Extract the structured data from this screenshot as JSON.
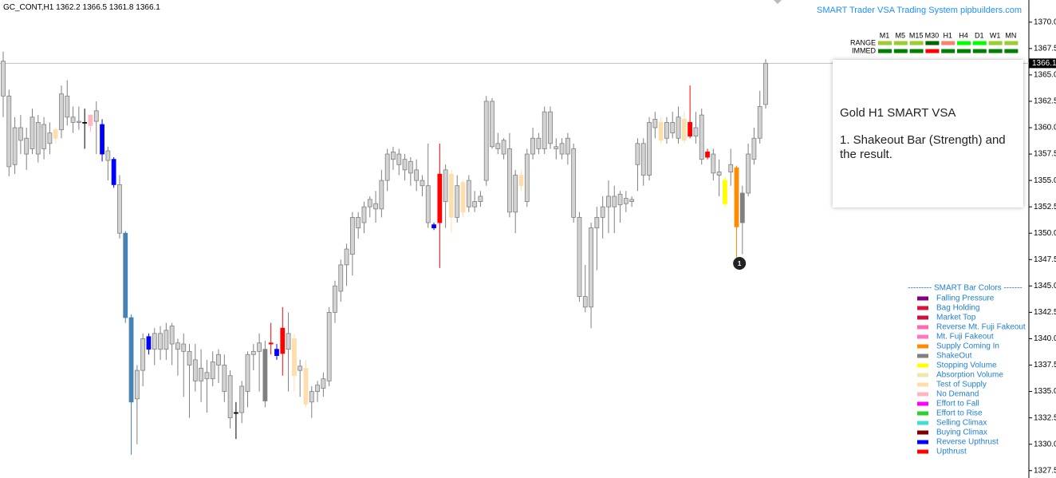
{
  "chart_data": {
    "type": "candlestick",
    "symbol": "GC_CONT,H1",
    "ohlc": [
      [
        1366.3,
        1367.2,
        1361.0,
        1363.0
      ],
      [
        1363.0,
        1363.6,
        1355.4,
        1356.3
      ],
      [
        1356.5,
        1361.0,
        1355.6,
        1360.0
      ],
      [
        1360.0,
        1361.2,
        1357.5,
        1358.8
      ],
      [
        1357.5,
        1360.0,
        1356.0,
        1359.0
      ],
      [
        1358.0,
        1361.8,
        1357.5,
        1361.0
      ],
      [
        1357.5,
        1361.2,
        1356.7,
        1360.5
      ],
      [
        1358.0,
        1361.0,
        1357.0,
        1360.3
      ],
      [
        1359.5,
        1360.5,
        1357.5,
        1358.5
      ],
      [
        1359.0,
        1360.0,
        1358.5,
        1359.8
      ],
      [
        1359.8,
        1364.0,
        1359.0,
        1363.2
      ],
      [
        1363.0,
        1364.5,
        1360.2,
        1361.0
      ],
      [
        1361.0,
        1362.0,
        1359.5,
        1360.5
      ],
      [
        1360.5,
        1362.0,
        1359.8,
        1360.6
      ],
      [
        1360.5,
        1361.8,
        1358.0,
        1360.5
      ],
      [
        1360.2,
        1361.0,
        1359.6,
        1361.2
      ],
      [
        1360.6,
        1362.5,
        1357.5,
        1361.6
      ],
      [
        1360.3,
        1360.8,
        1356.8,
        1357.5
      ],
      [
        1357.8,
        1358.2,
        1355.0,
        1356.9
      ],
      [
        1357.0,
        1357.2,
        1354.3,
        1354.6
      ],
      [
        1354.6,
        1355.5,
        1349.5,
        1350.0
      ],
      [
        1350.0,
        1350.2,
        1341.5,
        1342.0
      ],
      [
        1342.0,
        1342.3,
        1329.0,
        1334.0
      ],
      [
        1334.3,
        1337.5,
        1330.0,
        1337.0
      ],
      [
        1337.0,
        1340.5,
        1335.5,
        1340.0
      ],
      [
        1340.2,
        1340.5,
        1338.5,
        1339.0
      ],
      [
        1339.0,
        1341.0,
        1337.5,
        1340.5
      ],
      [
        1340.5,
        1341.2,
        1338.0,
        1339.0
      ],
      [
        1339.0,
        1341.5,
        1338.0,
        1340.8
      ],
      [
        1341.2,
        1341.5,
        1337.5,
        1339.5
      ],
      [
        1339.0,
        1340.0,
        1336.5,
        1339.6
      ],
      [
        1339.5,
        1340.5,
        1334.5,
        1338.8
      ],
      [
        1338.8,
        1339.5,
        1332.5,
        1337.5
      ],
      [
        1338.0,
        1339.5,
        1335.0,
        1336.0
      ],
      [
        1336.0,
        1339.0,
        1334.0,
        1337.2
      ],
      [
        1336.8,
        1338.0,
        1333.0,
        1336.2
      ],
      [
        1336.2,
        1338.8,
        1335.5,
        1337.8
      ],
      [
        1337.5,
        1339.0,
        1335.8,
        1338.5
      ],
      [
        1337.5,
        1338.5,
        1334.0,
        1335.0
      ],
      [
        1336.5,
        1337.0,
        1331.5,
        1332.5
      ],
      [
        1333.0,
        1334.0,
        1330.5,
        1333.0
      ],
      [
        1333.0,
        1336.0,
        1332.0,
        1335.5
      ],
      [
        1335.0,
        1338.8,
        1333.5,
        1338.5
      ],
      [
        1338.5,
        1339.5,
        1337.0,
        1338.8
      ],
      [
        1338.8,
        1340.5,
        1335.0,
        1339.6
      ],
      [
        1334.1,
        1339.8,
        1333.5,
        1339.0
      ],
      [
        1339.6,
        1341.5,
        1338.5,
        1339.5
      ],
      [
        1339.0,
        1339.5,
        1338.0,
        1338.4
      ],
      [
        1341.0,
        1343.0,
        1336.5,
        1338.6
      ],
      [
        1339.0,
        1342.5,
        1335.0,
        1340.5
      ],
      [
        1340.0,
        1340.5,
        1335.0,
        1336.5
      ],
      [
        1337.0,
        1338.0,
        1334.5,
        1337.4
      ],
      [
        1337.2,
        1338.0,
        1333.5,
        1333.8
      ],
      [
        1334.0,
        1335.5,
        1332.5,
        1335.0
      ],
      [
        1335.0,
        1336.0,
        1334.0,
        1335.6
      ],
      [
        1335.3,
        1336.8,
        1334.5,
        1336.2
      ],
      [
        1336.0,
        1343.0,
        1335.5,
        1342.5
      ],
      [
        1342.5,
        1345.5,
        1341.5,
        1345.0
      ],
      [
        1344.5,
        1347.5,
        1343.5,
        1347.0
      ],
      [
        1347.0,
        1349.0,
        1345.0,
        1348.5
      ],
      [
        1348.0,
        1352.0,
        1346.0,
        1351.5
      ],
      [
        1350.5,
        1352.0,
        1349.5,
        1351.5
      ],
      [
        1351.0,
        1353.0,
        1350.0,
        1352.5
      ],
      [
        1352.5,
        1353.5,
        1351.5,
        1353.2
      ],
      [
        1352.8,
        1354.0,
        1351.0,
        1352.3
      ],
      [
        1352.3,
        1356.0,
        1351.5,
        1355.0
      ],
      [
        1355.0,
        1358.0,
        1354.0,
        1357.5
      ],
      [
        1357.7,
        1358.2,
        1356.0,
        1357.0
      ],
      [
        1356.5,
        1358.0,
        1355.5,
        1357.5
      ],
      [
        1357.0,
        1357.5,
        1355.0,
        1356.0
      ],
      [
        1356.8,
        1357.2,
        1354.5,
        1355.7
      ],
      [
        1356.0,
        1357.0,
        1354.0,
        1355.0
      ],
      [
        1355.0,
        1355.5,
        1353.5,
        1354.5
      ],
      [
        1354.5,
        1358.5,
        1350.5,
        1351.0
      ],
      [
        1350.8,
        1351.0,
        1350.3,
        1350.5
      ],
      [
        1351.0,
        1358.5,
        1346.7,
        1355.6
      ],
      [
        1356.0,
        1356.5,
        1350.5,
        1353.0
      ],
      [
        1355.6,
        1356.0,
        1350.0,
        1351.5
      ],
      [
        1351.5,
        1355.5,
        1351.0,
        1354.5
      ],
      [
        1354.8,
        1355.0,
        1351.5,
        1352.0
      ],
      [
        1352.5,
        1355.5,
        1352.0,
        1355.0
      ],
      [
        1352.5,
        1354.0,
        1352.0,
        1353.0
      ],
      [
        1353.0,
        1354.0,
        1352.5,
        1353.5
      ],
      [
        1355.0,
        1363.0,
        1354.5,
        1362.5
      ],
      [
        1362.5,
        1362.8,
        1358.0,
        1358.2
      ],
      [
        1358.0,
        1359.5,
        1357.5,
        1358.5
      ],
      [
        1358.8,
        1359.0,
        1357.0,
        1357.5
      ],
      [
        1358.0,
        1359.5,
        1351.5,
        1352.0
      ],
      [
        1352.0,
        1356.0,
        1350.0,
        1355.5
      ],
      [
        1355.5,
        1356.0,
        1354.0,
        1354.5
      ],
      [
        1353.0,
        1358.0,
        1352.5,
        1357.5
      ],
      [
        1357.5,
        1360.0,
        1357.0,
        1359.0
      ],
      [
        1359.0,
        1359.5,
        1357.5,
        1358.0
      ],
      [
        1358.0,
        1362.0,
        1357.5,
        1361.5
      ],
      [
        1361.5,
        1362.0,
        1358.0,
        1358.5
      ],
      [
        1358.0,
        1359.0,
        1357.0,
        1358.2
      ],
      [
        1358.5,
        1359.0,
        1357.0,
        1357.5
      ],
      [
        1357.5,
        1359.5,
        1356.5,
        1359.0
      ],
      [
        1358.0,
        1358.5,
        1351.0,
        1351.5
      ],
      [
        1351.5,
        1352.0,
        1343.5,
        1344.0
      ],
      [
        1344.0,
        1347.0,
        1342.5,
        1343.0
      ],
      [
        1343.0,
        1351.0,
        1341.0,
        1350.5
      ],
      [
        1350.5,
        1352.5,
        1346.5,
        1351.5
      ],
      [
        1351.5,
        1353.5,
        1349.5,
        1352.5
      ],
      [
        1352.5,
        1355.0,
        1350.0,
        1353.5
      ],
      [
        1353.5,
        1354.5,
        1350.0,
        1352.5
      ],
      [
        1352.7,
        1354.0,
        1351.0,
        1353.7
      ],
      [
        1353.3,
        1354.0,
        1352.0,
        1352.8
      ],
      [
        1353.0,
        1353.5,
        1352.5,
        1353.2
      ],
      [
        1356.5,
        1359.0,
        1354.0,
        1358.5
      ],
      [
        1358.5,
        1359.0,
        1354.5,
        1355.5
      ],
      [
        1355.5,
        1361.0,
        1355.0,
        1360.5
      ],
      [
        1360.0,
        1361.5,
        1359.0,
        1360.8
      ],
      [
        1360.5,
        1361.0,
        1358.5,
        1358.8
      ],
      [
        1359.0,
        1361.0,
        1358.5,
        1360.5
      ],
      [
        1360.5,
        1361.5,
        1359.0,
        1359.5
      ],
      [
        1361.0,
        1362.0,
        1358.5,
        1359.0
      ],
      [
        1360.8,
        1361.5,
        1358.5,
        1358.8
      ],
      [
        1360.5,
        1364.0,
        1359.0,
        1359.2
      ],
      [
        1359.2,
        1361.5,
        1358.5,
        1360.0
      ],
      [
        1361.2,
        1361.8,
        1356.5,
        1357.0
      ],
      [
        1357.7,
        1358.0,
        1357.0,
        1357.2
      ],
      [
        1357.5,
        1358.0,
        1355.0,
        1355.7
      ],
      [
        1355.8,
        1357.0,
        1353.5,
        1355.5
      ],
      [
        1355.0,
        1355.3,
        1352.5,
        1352.8
      ],
      [
        1355.8,
        1358.0,
        1354.5,
        1356.5
      ],
      [
        1356.2,
        1356.4,
        1347.7,
        1350.6
      ],
      [
        1351.0,
        1354.5,
        1348.0,
        1353.8
      ],
      [
        1353.8,
        1358.5,
        1353.5,
        1357.5
      ],
      [
        1357.0,
        1360.0,
        1356.5,
        1359.0
      ],
      [
        1359.0,
        1363.5,
        1358.5,
        1362.0
      ],
      [
        1362.2,
        1366.5,
        1361.8,
        1366.1
      ]
    ],
    "colors": [
      "#d3d3d3",
      "#d3d3d3",
      "#d3d3d3",
      "#d3d3d3",
      "#d3d3d3",
      "#d3d3d3",
      "#d3d3d3",
      "#d3d3d3",
      "#d3d3d3",
      "#ffdead",
      "#d3d3d3",
      "#d3d3d3",
      "#d3d3d3",
      "#d3d3d3",
      "#000000",
      "#ffb6c1",
      "#d3d3d3",
      "#0000ff",
      "#d3d3d3",
      "#0000ff",
      "#d3d3d3",
      "#4682b4",
      "#4682b4",
      "#d3d3d3",
      "#d3d3d3",
      "#0000ff",
      "#d3d3d3",
      "#d3d3d3",
      "#d3d3d3",
      "#d3d3d3",
      "#d3d3d3",
      "#d3d3d3",
      "#d3d3d3",
      "#d3d3d3",
      "#d3d3d3",
      "#d3d3d3",
      "#d3d3d3",
      "#d3d3d3",
      "#d3d3d3",
      "#d3d3d3",
      "#000000",
      "#d3d3d3",
      "#d3d3d3",
      "#d3d3d3",
      "#d3d3d3",
      "#808080",
      "#ff0000",
      "#0000ff",
      "#ff0000",
      "#d3d3d3",
      "#ffdead",
      "#d3d3d3",
      "#ffdead",
      "#d3d3d3",
      "#d3d3d3",
      "#d3d3d3",
      "#d3d3d3",
      "#d3d3d3",
      "#d3d3d3",
      "#d3d3d3",
      "#d3d3d3",
      "#d3d3d3",
      "#d3d3d3",
      "#d3d3d3",
      "#d3d3d3",
      "#d3d3d3",
      "#d3d3d3",
      "#d3d3d3",
      "#d3d3d3",
      "#d3d3d3",
      "#d3d3d3",
      "#d3d3d3",
      "#d3d3d3",
      "#d3d3d3",
      "#0000ff",
      "#ff0000",
      "#d3d3d3",
      "#ffdead",
      "#d3d3d3",
      "#ffdead",
      "#d3d3d3",
      "#d3d3d3",
      "#d3d3d3",
      "#d3d3d3",
      "#d3d3d3",
      "#d3d3d3",
      "#d3d3d3",
      "#d3d3d3",
      "#d3d3d3",
      "#ffdead",
      "#d3d3d3",
      "#d3d3d3",
      "#d3d3d3",
      "#d3d3d3",
      "#d3d3d3",
      "#d3d3d3",
      "#d3d3d3",
      "#d3d3d3",
      "#d3d3d3",
      "#d3d3d3",
      "#d3d3d3",
      "#d3d3d3",
      "#d3d3d3",
      "#d3d3d3",
      "#d3d3d3",
      "#d3d3d3",
      "#d3d3d3",
      "#d3d3d3",
      "#d3d3d3",
      "#d3d3d3",
      "#d3d3d3",
      "#d3d3d3",
      "#d3d3d3",
      "#ffdead",
      "#d3d3d3",
      "#d3d3d3",
      "#d3d3d3",
      "#ffdead",
      "#ff0000",
      "#d3d3d3",
      "#d3d3d3",
      "#ff0000",
      "#d3d3d3",
      "#d3d3d3",
      "#ffff00",
      "#d3d3d3",
      "#ff8c00",
      "#808080",
      "#d3d3d3",
      "#d3d3d3",
      "#d3d3d3",
      "#d3d3d3"
    ],
    "ylim": [
      1326.8,
      1372.1
    ],
    "yticks": [
      {
        "value": 1370,
        "label": "1370.0"
      },
      1367.5,
      {
        "value": 1365,
        "label": "1365.0"
      },
      1362.5,
      {
        "value": 1360,
        "label": "1360.0"
      },
      1357.5,
      {
        "value": 1355,
        "label": "1355.0"
      },
      1352.5,
      {
        "value": 1350,
        "label": "1350.0"
      },
      1347.5,
      {
        "value": 1345,
        "label": "1345.0"
      },
      1342.5,
      {
        "value": 1340,
        "label": "1340.0"
      },
      1337.5,
      {
        "value": 1335,
        "label": "1335.0"
      },
      1332.5,
      {
        "value": 1330,
        "label": "1330.0"
      },
      1327.5
    ],
    "annotation": "1"
  },
  "header": {
    "brand": "SMART Trader VSA Trading System pipbuilders.com"
  },
  "signals": {
    "timeframes": [
      "M1",
      "M5",
      "M15",
      "M30",
      "H1",
      "H4",
      "D1",
      "W1",
      "MN"
    ],
    "rows": [
      {
        "name": "RANGE",
        "colors": [
          "#9acd32",
          "#9acd32",
          "#9acd32",
          "#006400",
          "#fa8072",
          "#00ff00",
          "#00ff00",
          "#9acd32",
          "#9acd32"
        ]
      },
      {
        "name": "IMMED",
        "colors": [
          "#008000",
          "#008000",
          "#008000",
          "#ff0000",
          "#008000",
          "#008000",
          "#008000",
          "#008000",
          "#008000"
        ]
      }
    ]
  },
  "note": {
    "title": "Gold H1 SMART VSA",
    "text": "1. Shakeout Bar (Strength) and the result."
  },
  "legend": {
    "title": "--------- SMART Bar Colors -------",
    "items": [
      {
        "name": "Falling Pressure",
        "color": "#800080"
      },
      {
        "name": "Bag Holding",
        "color": "#dc143c"
      },
      {
        "name": "Market Top",
        "color": "#c8143c"
      },
      {
        "name": "Reverse Mt. Fuji Fakeout",
        "color": "#ff69b4"
      },
      {
        "name": "Mt. Fuji Fakeout",
        "color": "#ff77c0"
      },
      {
        "name": "Supply Coming In",
        "color": "#ff8c00"
      },
      {
        "name": "ShakeOut",
        "color": "#808080"
      },
      {
        "name": "Stopping Volume",
        "color": "#ffff00"
      },
      {
        "name": "Absorption Volume",
        "color": "#eee8aa"
      },
      {
        "name": "Test of Supply",
        "color": "#ffdead"
      },
      {
        "name": "No Demand",
        "color": "#ffb6c1"
      },
      {
        "name": "Effort to Fall",
        "color": "#ff00ff"
      },
      {
        "name": "Effort to Rise",
        "color": "#32cd32"
      },
      {
        "name": "Selling Climax",
        "color": "#40e0d0"
      },
      {
        "name": "Buying Climax",
        "color": "#800000"
      },
      {
        "name": "Reverse Upthrust",
        "color": "#0000ff"
      },
      {
        "name": "Upthrust",
        "color": "#ff0000"
      }
    ]
  }
}
